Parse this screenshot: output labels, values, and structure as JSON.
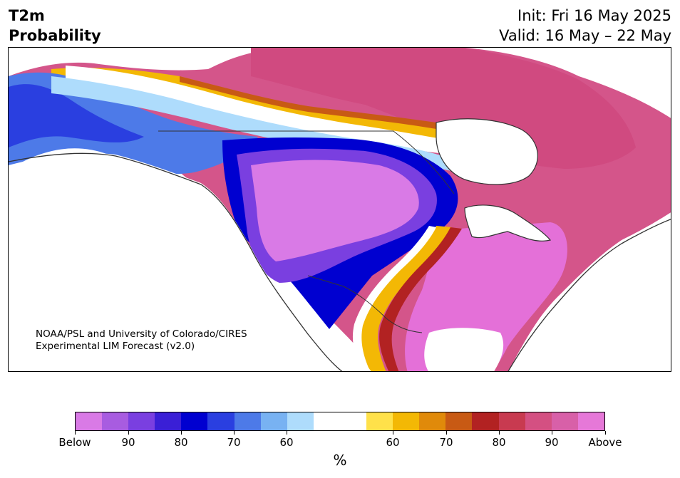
{
  "title": {
    "line1": "T2m",
    "line2": "Probability"
  },
  "init_text": "Init: Fri 16 May 2025",
  "valid_text": "Valid: 16 May – 22 May",
  "credit": {
    "line1": "NOAA/PSL and University of Colorado/CIRES",
    "line2": "Experimental LIM Forecast (v2.0)"
  },
  "colorbar": {
    "colors": [
      "#d97ae6",
      "#a85ce0",
      "#7a3fe0",
      "#3a1fd6",
      "#0000d0",
      "#2a3fe0",
      "#4d7ae8",
      "#78b2f2",
      "#aedcfc",
      "#ffffff",
      "#ffffff",
      "#ffe14a",
      "#f3b805",
      "#e08a0a",
      "#c85a14",
      "#b22222",
      "#c83a50",
      "#d45082",
      "#d860a8",
      "#e678d8"
    ],
    "tick_labels": [
      "Below",
      "90",
      "80",
      "70",
      "60",
      "60",
      "70",
      "80",
      "90",
      "Above"
    ],
    "unit": "%"
  }
}
